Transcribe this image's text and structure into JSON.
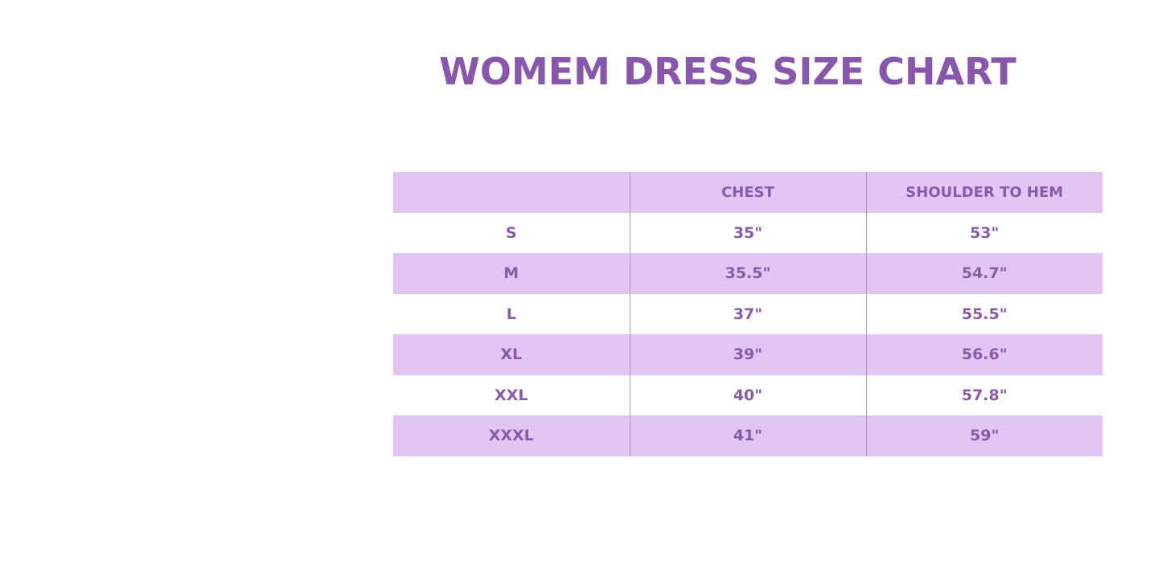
{
  "title": "WOMEM DRESS SIZE CHART",
  "colors": {
    "accent": "#8a5aaa",
    "row_shade": "#e1c6f4"
  },
  "table": {
    "headers": [
      "",
      "CHEST",
      "SHOULDER TO HEM"
    ],
    "rows": [
      [
        "S",
        "35\"",
        "53\""
      ],
      [
        "M",
        "35.5\"",
        "54.7\""
      ],
      [
        "L",
        "37\"",
        "55.5\""
      ],
      [
        "XL",
        "39\"",
        "56.6\""
      ],
      [
        "XXL",
        "40\"",
        "57.8\""
      ],
      [
        "XXXL",
        "41\"",
        "59\""
      ]
    ]
  }
}
